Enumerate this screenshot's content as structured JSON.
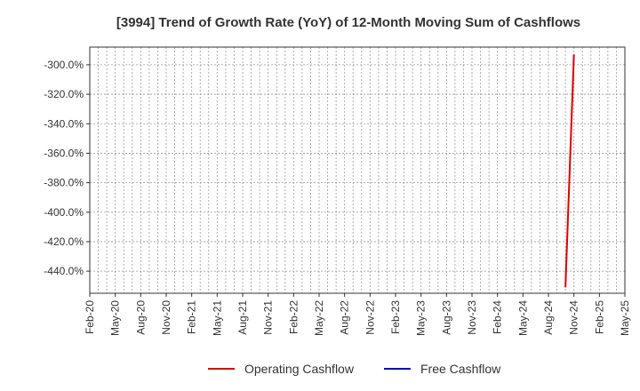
{
  "chart_data": {
    "type": "line",
    "title": "[3994]  Trend of Growth Rate (YoY) of 12-Month Moving Sum of Cashflows",
    "xlabel": "",
    "ylabel": "",
    "x_start": "2020-02",
    "x_end": "2025-05",
    "x_tick_labels": [
      "Feb-20",
      "May-20",
      "Aug-20",
      "Nov-20",
      "Feb-21",
      "May-21",
      "Aug-21",
      "Nov-21",
      "Feb-22",
      "May-22",
      "Aug-22",
      "Nov-22",
      "Feb-23",
      "May-23",
      "Aug-23",
      "Nov-23",
      "Feb-24",
      "May-24",
      "Aug-24",
      "Nov-24",
      "Feb-25",
      "May-25"
    ],
    "y_ticks": [
      -300,
      -320,
      -340,
      -360,
      -380,
      -400,
      -420,
      -440
    ],
    "y_tick_format": "%",
    "ylim": [
      -455,
      -288
    ],
    "grid": true,
    "legend_position": "bottom",
    "series": [
      {
        "name": "Operating Cashflow",
        "color": "#e00000",
        "points": [
          {
            "x": "2024-10",
            "y": -451.0
          },
          {
            "x": "2024-11",
            "y": -293.0
          }
        ]
      },
      {
        "name": "Free Cashflow",
        "color": "#0000cc",
        "points": []
      }
    ]
  }
}
